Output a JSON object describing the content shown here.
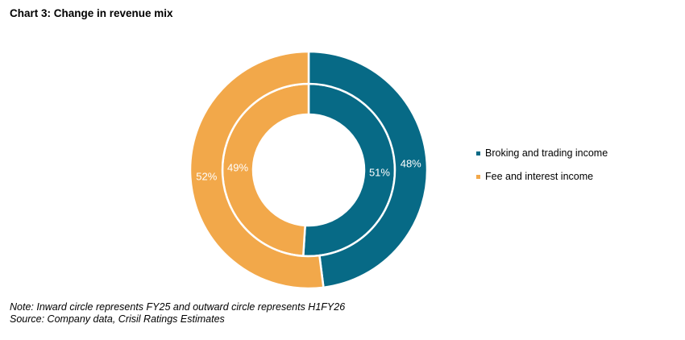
{
  "title": "Chart 3: Change in revenue mix",
  "chart_data": {
    "type": "pie",
    "title": "Chart 3: Change in revenue mix",
    "categories": [
      "Broking and trading income",
      "Fee and interest income"
    ],
    "colors": [
      "#076A86",
      "#F2A84A"
    ],
    "rings": [
      {
        "name": "FY25",
        "position": "inner",
        "values": [
          51,
          49
        ],
        "labels": [
          "51%",
          "49%"
        ]
      },
      {
        "name": "H1FY26",
        "position": "outer",
        "values": [
          48,
          52
        ],
        "labels": [
          "48%",
          "52%"
        ]
      }
    ],
    "legend": "right"
  },
  "legend": {
    "items": [
      {
        "label": "Broking and trading income",
        "color": "#076A86"
      },
      {
        "label": "Fee and interest income",
        "color": "#F2A84A"
      }
    ]
  },
  "note": "Note: Inward circle represents FY25 and outward circle represents H1FY26",
  "source": "Source: Company data, Crisil Ratings Estimates"
}
